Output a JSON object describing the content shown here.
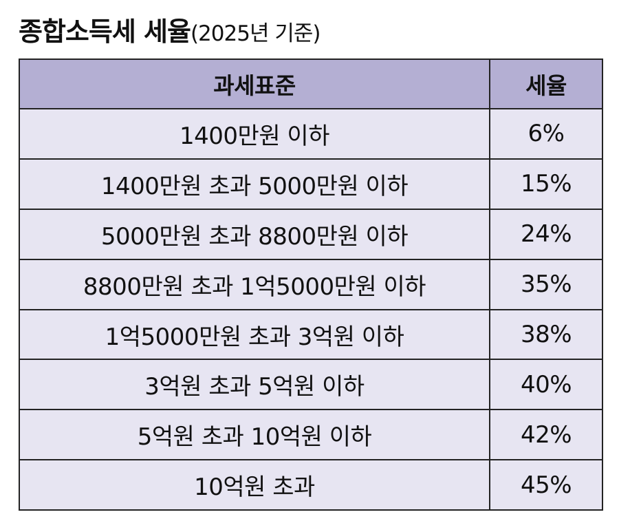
{
  "title": {
    "main": "종합소득세 세율",
    "sub": "(2025년 기준)"
  },
  "table": {
    "headers": [
      "과세표준",
      "세율"
    ],
    "rows": [
      {
        "bracket": "1400만원 이하",
        "rate": "6%"
      },
      {
        "bracket": "1400만원 초과 5000만원 이하",
        "rate": "15%"
      },
      {
        "bracket": "5000만원 초과 8800만원 이하",
        "rate": "24%"
      },
      {
        "bracket": "8800만원 초과 1억5000만원 이하",
        "rate": "35%"
      },
      {
        "bracket": "1억5000만원 초과 3억원 이하",
        "rate": "38%"
      },
      {
        "bracket": "3억원 초과 5억원 이하",
        "rate": "40%"
      },
      {
        "bracket": "5억원 초과 10억원 이하",
        "rate": "42%"
      },
      {
        "bracket": "10억원 초과",
        "rate": "45%"
      }
    ]
  },
  "colors": {
    "header_bg": "#b4afd3",
    "row_bg": "#e7e5f2",
    "border": "#222222"
  }
}
